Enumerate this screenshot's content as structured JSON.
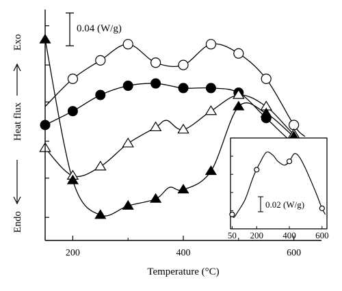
{
  "chart_data": [
    {
      "type": "line",
      "xlabel": "Temperature (°C)",
      "ylabel": "Heat flux",
      "exo_label": "Exo",
      "endo_label": "Endo",
      "scale_bar_label": "0.04 (W/g)",
      "xlim": [
        150,
        650
      ],
      "x_ticks": [
        200,
        400,
        600
      ],
      "grid": false,
      "series": [
        {
          "marker": "open-circle",
          "points": [
            [
              150,
              0.58
            ],
            [
              200,
              0.7
            ],
            [
              250,
              0.78
            ],
            [
              300,
              0.85
            ],
            [
              350,
              0.77
            ],
            [
              400,
              0.76
            ],
            [
              450,
              0.85
            ],
            [
              500,
              0.81
            ],
            [
              550,
              0.7
            ],
            [
              600,
              0.5
            ],
            [
              620,
              0.45
            ]
          ],
          "markers_x": [
            200,
            250,
            300,
            350,
            400,
            450,
            500,
            550,
            600
          ]
        },
        {
          "marker": "filled-circle",
          "points": [
            [
              150,
              0.5
            ],
            [
              200,
              0.56
            ],
            [
              250,
              0.63
            ],
            [
              300,
              0.67
            ],
            [
              350,
              0.68
            ],
            [
              400,
              0.66
            ],
            [
              450,
              0.66
            ],
            [
              500,
              0.64
            ],
            [
              550,
              0.53
            ],
            [
              600,
              0.42
            ],
            [
              630,
              0.4
            ]
          ],
          "markers_x": [
            150,
            200,
            250,
            300,
            350,
            400,
            450,
            500,
            550,
            600
          ]
        },
        {
          "marker": "open-triangle",
          "points": [
            [
              150,
              0.4
            ],
            [
              200,
              0.28
            ],
            [
              250,
              0.32
            ],
            [
              300,
              0.42
            ],
            [
              350,
              0.49
            ],
            [
              370,
              0.52
            ],
            [
              400,
              0.48
            ],
            [
              450,
              0.56
            ],
            [
              500,
              0.63
            ],
            [
              550,
              0.58
            ],
            [
              600,
              0.46
            ],
            [
              630,
              0.42
            ]
          ],
          "markers_x": [
            150,
            200,
            250,
            300,
            350,
            400,
            450,
            500,
            550,
            600
          ]
        },
        {
          "marker": "filled-triangle",
          "points": [
            [
              150,
              0.87
            ],
            [
              200,
              0.26
            ],
            [
              250,
              0.11
            ],
            [
              300,
              0.15
            ],
            [
              350,
              0.18
            ],
            [
              375,
              0.23
            ],
            [
              400,
              0.22
            ],
            [
              450,
              0.3
            ],
            [
              500,
              0.58
            ],
            [
              550,
              0.55
            ],
            [
              600,
              0.45
            ],
            [
              620,
              0.42
            ]
          ],
          "markers_x": [
            150,
            200,
            250,
            300,
            350,
            400,
            450,
            500,
            550,
            600
          ]
        }
      ]
    },
    {
      "type": "line",
      "inset": true,
      "scale_bar_label": "0.02 (W/g)",
      "xlim": [
        40,
        630
      ],
      "x_ticks": [
        50,
        200,
        400,
        600
      ],
      "series": [
        {
          "marker": "open-circle",
          "points": [
            [
              50,
              0.1
            ],
            [
              60,
              0.06
            ],
            [
              80,
              0.12
            ],
            [
              130,
              0.3
            ],
            [
              180,
              0.6
            ],
            [
              220,
              0.78
            ],
            [
              260,
              0.92
            ],
            [
              300,
              0.88
            ],
            [
              330,
              0.8
            ],
            [
              370,
              0.75
            ],
            [
              400,
              0.8
            ],
            [
              430,
              0.9
            ],
            [
              460,
              0.86
            ],
            [
              500,
              0.7
            ],
            [
              560,
              0.4
            ],
            [
              600,
              0.18
            ],
            [
              620,
              0.1
            ]
          ],
          "markers_x": [
            50,
            200,
            400,
            600
          ]
        }
      ]
    }
  ]
}
